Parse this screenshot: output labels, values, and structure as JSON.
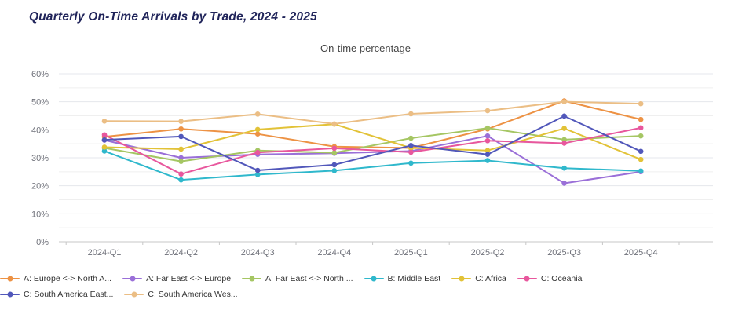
{
  "header": {
    "title": "Quarterly On-Time Arrivals by Trade, 2024 - 2025",
    "title_color": "#20245A"
  },
  "chart_data": {
    "type": "line",
    "title": "On-time percentage",
    "categories": [
      "2024-Q1",
      "2024-Q2",
      "2024-Q3",
      "2024-Q4",
      "2025-Q1",
      "2025-Q2",
      "2025-Q3",
      "2025-Q4"
    ],
    "series": [
      {
        "name": "A: Europe <-> North A...",
        "color": "#ED9244",
        "values": [
          37.5,
          40.3,
          38.5,
          34.0,
          33.5,
          40.3,
          50.3,
          43.7
        ]
      },
      {
        "name": "A: Far East <-> Europe",
        "color": "#9A6FD8",
        "values": [
          36.3,
          30.0,
          31.2,
          31.6,
          32.4,
          37.8,
          20.9,
          25.0
        ]
      },
      {
        "name": "A: Far East <-> North ...",
        "color": "#A5C663",
        "values": [
          33.5,
          28.7,
          32.6,
          31.8,
          37.0,
          40.6,
          36.5,
          37.8
        ]
      },
      {
        "name": "B: Middle East",
        "color": "#2FB8CC",
        "values": [
          32.4,
          22.1,
          24.0,
          25.4,
          28.1,
          29.0,
          26.3,
          25.3
        ]
      },
      {
        "name": "C: Africa",
        "color": "#E2C237",
        "values": [
          33.8,
          33.1,
          40.1,
          42.0,
          33.5,
          32.6,
          40.5,
          29.4
        ]
      },
      {
        "name": "C: Oceania",
        "color": "#E8579D",
        "values": [
          38.2,
          24.2,
          31.9,
          33.4,
          32.0,
          36.1,
          35.2,
          40.7
        ]
      },
      {
        "name": "C: South America East...",
        "color": "#5157BA",
        "values": [
          36.4,
          37.6,
          25.5,
          27.5,
          34.4,
          31.2,
          44.9,
          32.3
        ]
      },
      {
        "name": "C: South America Wes...",
        "color": "#EBBE85",
        "values": [
          43.1,
          43.0,
          45.6,
          42.1,
          45.7,
          46.8,
          50.0,
          49.3
        ]
      }
    ],
    "xlabel": "",
    "ylabel": "",
    "ylim": [
      0,
      60
    ],
    "y_major_step": 10,
    "y_minor_step": 5,
    "y_tick_suffix": "%",
    "grid": true,
    "legend_position": "bottom",
    "axis_label_color": "#6E7079",
    "grid_major_color": "#E4E7EC",
    "grid_minor_color": "#EFEFEF",
    "axis_line_color": "#C7C7C7"
  }
}
